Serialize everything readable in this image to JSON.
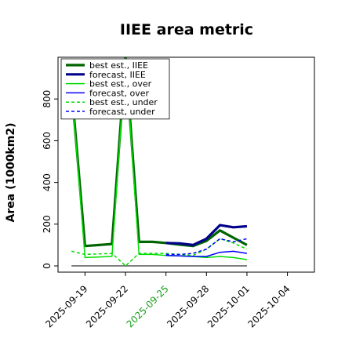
{
  "chart_data": {
    "type": "line",
    "title": "IIEE area metric",
    "xlabel": "",
    "ylabel": "Area (1000km2)",
    "x_ticks": [
      "2025-09-19",
      "2025-09-22",
      "2025-09-25",
      "2025-09-28",
      "2025-10-01",
      "2025-10-04"
    ],
    "highlighted_tick": "2025-09-25",
    "highlight_color": "#1a9e1a",
    "xlim": [
      "2025-09-17",
      "2025-10-06"
    ],
    "y_ticks": [
      0,
      200,
      400,
      600,
      800
    ],
    "ylim": [
      -30,
      1000
    ],
    "grid": false,
    "legend_position": "top-left",
    "baseline": {
      "value": 0,
      "from": "2025-09-18",
      "to": "2025-10-01",
      "color": "#555555"
    },
    "series": [
      {
        "name": "best est., IIEE",
        "color": "#006400",
        "style": "solid",
        "width": "thick",
        "x": [
          "2025-09-18",
          "2025-09-19",
          "2025-09-21",
          "2025-09-22",
          "2025-09-23",
          "2025-09-24",
          "2025-09-25",
          "2025-09-26",
          "2025-09-27",
          "2025-09-28",
          "2025-09-29",
          "2025-09-30",
          "2025-10-01"
        ],
        "values": [
          860,
          95,
          105,
          1000,
          115,
          115,
          110,
          102,
          95,
          120,
          170,
          135,
          100
        ]
      },
      {
        "name": "forecast, IIEE",
        "color": "#00008b",
        "style": "solid",
        "width": "thick",
        "x": [
          "2025-09-25",
          "2025-09-26",
          "2025-09-27",
          "2025-09-28",
          "2025-09-29",
          "2025-09-30",
          "2025-10-01"
        ],
        "values": [
          110,
          108,
          100,
          130,
          195,
          185,
          190
        ]
      },
      {
        "name": "best est., over",
        "color": "#00dd00",
        "style": "solid",
        "width": "thin",
        "x": [
          "2025-09-18",
          "2025-09-19",
          "2025-09-21",
          "2025-09-22",
          "2025-09-23",
          "2025-09-24",
          "2025-09-25",
          "2025-09-26",
          "2025-09-27",
          "2025-09-28",
          "2025-09-29",
          "2025-09-30",
          "2025-10-01"
        ],
        "values": [
          860,
          40,
          45,
          1000,
          55,
          55,
          50,
          48,
          45,
          40,
          45,
          40,
          30
        ]
      },
      {
        "name": "forecast, over",
        "color": "#0000ff",
        "style": "solid",
        "width": "thin",
        "x": [
          "2025-09-25",
          "2025-09-26",
          "2025-09-27",
          "2025-09-28",
          "2025-09-29",
          "2025-09-30",
          "2025-10-01"
        ],
        "values": [
          50,
          48,
          45,
          45,
          65,
          70,
          60
        ]
      },
      {
        "name": "best est., under",
        "color": "#00dd00",
        "style": "dashed",
        "width": "thin",
        "x": [
          "2025-09-18",
          "2025-09-19",
          "2025-09-21",
          "2025-09-22",
          "2025-09-23",
          "2025-09-24",
          "2025-09-25",
          "2025-09-26",
          "2025-09-27",
          "2025-09-28",
          "2025-09-29",
          "2025-09-30",
          "2025-10-01"
        ],
        "values": [
          70,
          55,
          60,
          0,
          60,
          60,
          60,
          55,
          50,
          80,
          130,
          110,
          80
        ]
      },
      {
        "name": "forecast, under",
        "color": "#0000ff",
        "style": "dashed",
        "width": "thin",
        "x": [
          "2025-09-25",
          "2025-09-26",
          "2025-09-27",
          "2025-09-28",
          "2025-09-29",
          "2025-09-30",
          "2025-10-01"
        ],
        "values": [
          55,
          55,
          60,
          80,
          130,
          115,
          130
        ]
      }
    ]
  }
}
